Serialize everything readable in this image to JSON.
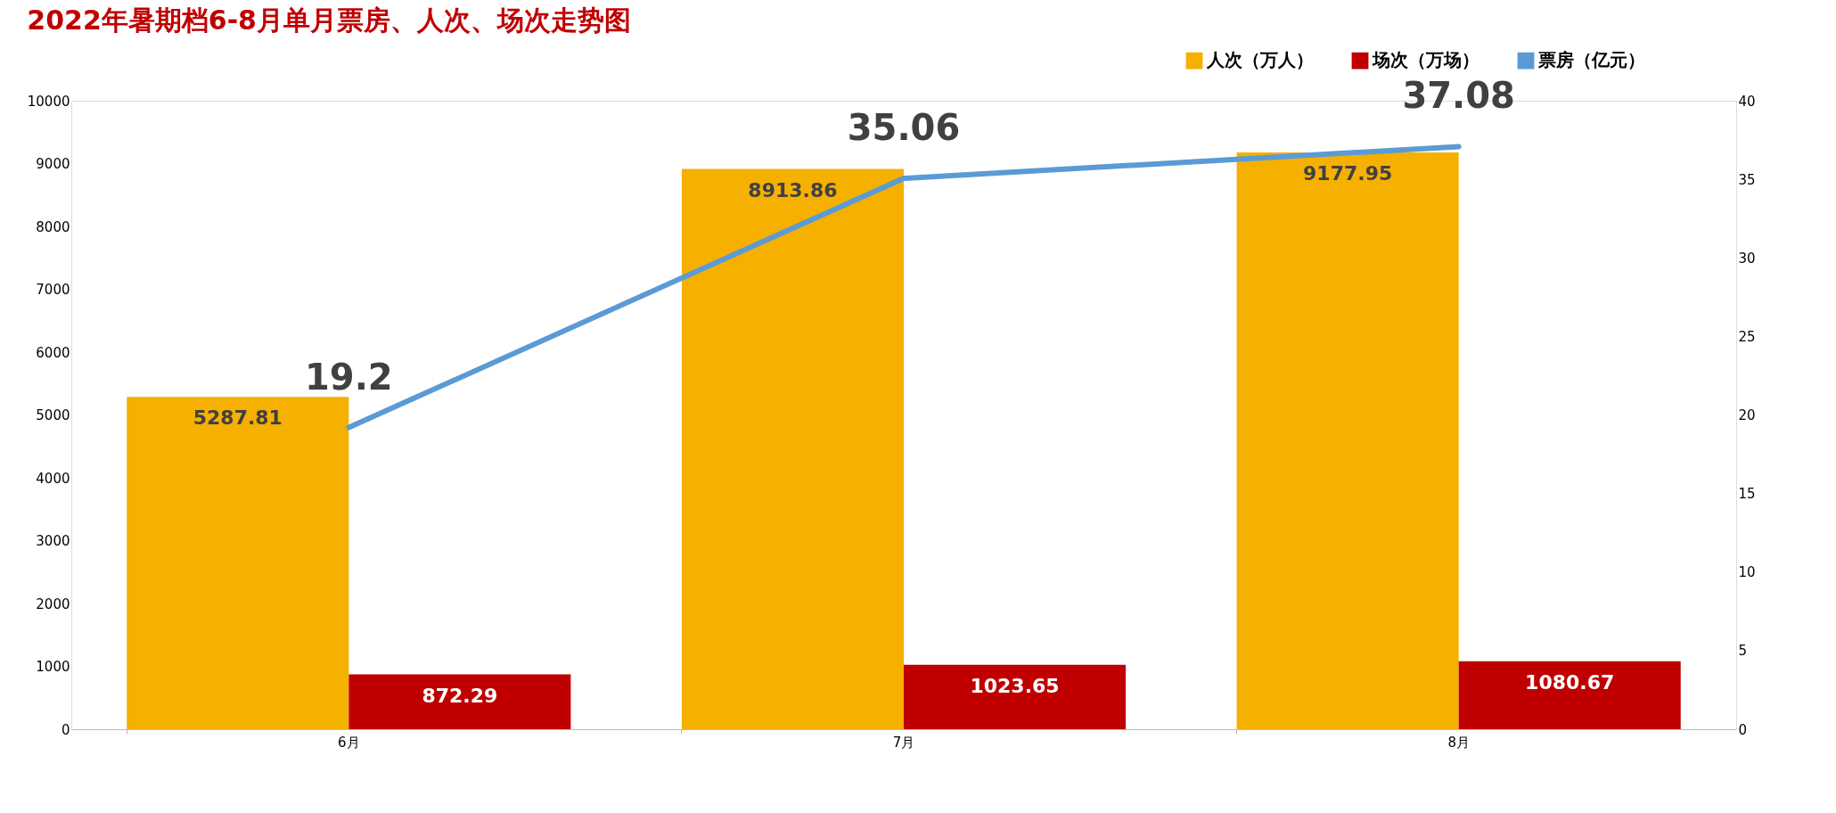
{
  "chart_data": {
    "type": "bar",
    "title": "2022年暑期档6-8月单月票房、人次、场次走势图",
    "categories": [
      "6月",
      "7月",
      "8月"
    ],
    "series": [
      {
        "name": "人次（万人）",
        "color": "#f5b000",
        "values": [
          5287.81,
          8913.86,
          9177.95
        ]
      },
      {
        "name": "场次（万场）",
        "color": "#c00000",
        "values": [
          872.29,
          1023.65,
          1080.67
        ]
      },
      {
        "name": "票房（亿元）",
        "color": "#5b9bd5",
        "values": [
          19.2,
          35.06,
          37.08
        ],
        "type": "line",
        "axis": "y2"
      }
    ],
    "ylim": [
      0,
      10000
    ],
    "yticks": [
      0,
      1000,
      2000,
      3000,
      4000,
      5000,
      6000,
      7000,
      8000,
      9000,
      10000
    ],
    "y2lim": [
      0,
      40
    ],
    "y2ticks": [
      0,
      5,
      10,
      15,
      20,
      25,
      30,
      35,
      40
    ],
    "data_labels": true,
    "legend": "top right",
    "grid": false,
    "marker": "none",
    "line_style": "solid"
  }
}
